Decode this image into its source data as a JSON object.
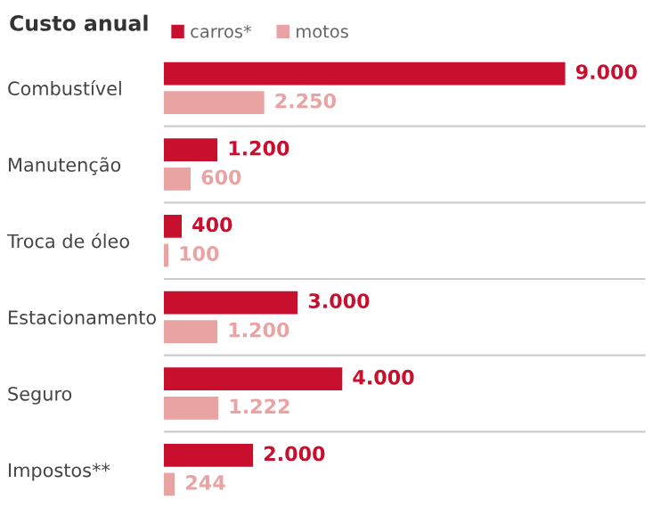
{
  "chart_data": {
    "type": "bar",
    "orientation": "horizontal",
    "title": "Custo anual",
    "categories": [
      "Combustível",
      "Manutenção",
      "Troca de óleo",
      "Estacionamento",
      "Seguro",
      "Impostos**"
    ],
    "series": [
      {
        "name": "carros*",
        "color": "#c8102e",
        "values": [
          9000,
          1200,
          400,
          3000,
          4000,
          2000
        ],
        "value_labels": [
          "9.000",
          "1.200",
          "400",
          "3.000",
          "4.000",
          "2.000"
        ]
      },
      {
        "name": "motos",
        "color": "#eaa3a3",
        "values": [
          2250,
          600,
          100,
          1200,
          1222,
          244
        ],
        "value_labels": [
          "2.250",
          "600",
          "100",
          "1.200",
          "1.222",
          "244"
        ]
      }
    ],
    "legend": "top",
    "grid": "y"
  }
}
